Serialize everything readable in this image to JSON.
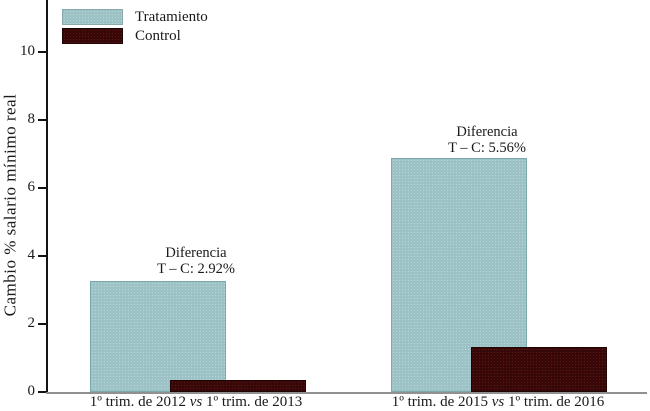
{
  "chart_data": {
    "type": "bar",
    "title": "",
    "ylabel": "Cambio % salario mínimo real",
    "xlabel": "",
    "ylim": [
      0,
      11.5
    ],
    "yticks": [
      0,
      2,
      4,
      6,
      8,
      10
    ],
    "grid": false,
    "legend_position": "top-left-inside",
    "bar_style": "overlapping",
    "categories": [
      "1º trim. de 2012 vs 1º trim. de 2013",
      "1º trim. de 2015 vs 1º trim. de 2016"
    ],
    "category_parts": [
      {
        "pre": "1º trim. de 2012 ",
        "vs": "vs",
        "post": " 1º trim. de 2013"
      },
      {
        "pre": "1º trim. de 2015 ",
        "vs": "vs",
        "post": " 1º trim. de 2016"
      }
    ],
    "series": [
      {
        "name": "Tratamiento",
        "values": [
          3.26,
          6.88
        ],
        "fill": "#9cc2c6",
        "border": "#7aa8ad"
      },
      {
        "name": "Control",
        "values": [
          0.34,
          1.32
        ],
        "fill": "#360808",
        "border": "#1f0404"
      }
    ],
    "annotations": [
      {
        "line1": "Diferencia",
        "line2": "T – C: 2.92%"
      },
      {
        "line1": "Diferencia",
        "line2": "T – C: 5.56%"
      }
    ],
    "colors": {
      "axis": "#141414",
      "baseline": "#8f9190",
      "text": "#1a1a1a",
      "background": "#ffffff"
    }
  }
}
